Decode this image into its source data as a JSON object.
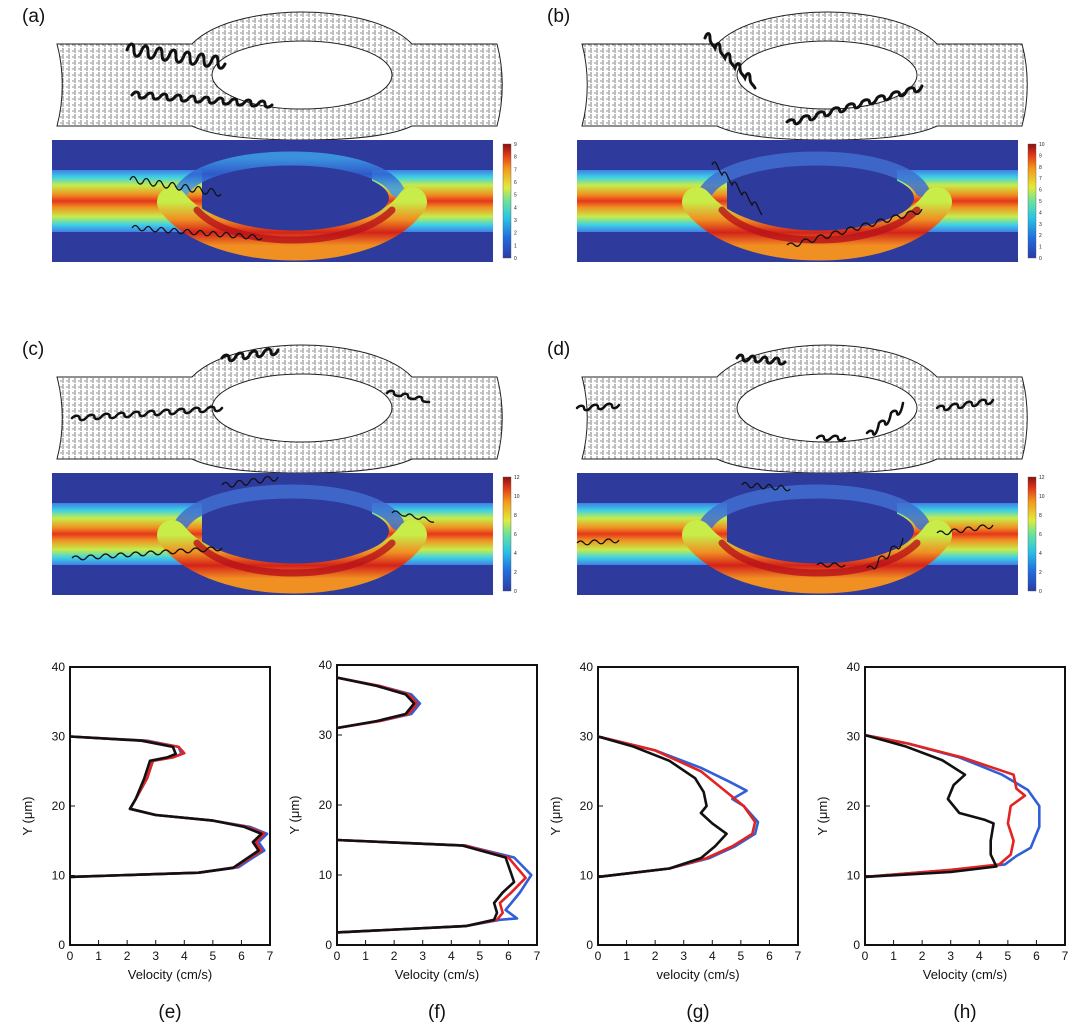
{
  "panels": {
    "a": {
      "label": "(a)",
      "colorbar_ticks": [
        "9",
        "8",
        "7",
        "6",
        "5",
        "4",
        "3",
        "2",
        "1",
        "0"
      ],
      "colorbar_max": 9
    },
    "b": {
      "label": "(b)",
      "colorbar_ticks": [
        "10",
        "9",
        "8",
        "7",
        "6",
        "5",
        "4",
        "3",
        "2",
        "1",
        "0"
      ],
      "colorbar_max": 10
    },
    "c": {
      "label": "(c)",
      "colorbar_ticks": [
        "12",
        "10",
        "8",
        "6",
        "4",
        "2",
        "0"
      ],
      "colorbar_max": 12
    },
    "d": {
      "label": "(d)",
      "colorbar_ticks": [
        "12",
        "10",
        "8",
        "6",
        "4",
        "2",
        "0"
      ],
      "colorbar_max": 12
    }
  },
  "colors": {
    "blue_series": "#2f5fd9",
    "red_series": "#e32222",
    "black_series": "#111111",
    "jet_low": "#2b3aa8",
    "jet_high": "#8b1010"
  },
  "chart_data": [
    {
      "type": "line",
      "panel_label": "(e)",
      "xlabel": "Velocity (cm/s)",
      "ylabel": "Y (μm)",
      "xlim": [
        0,
        7
      ],
      "ylim": [
        0,
        40
      ],
      "xticks": [
        "0",
        "1",
        "2",
        "3",
        "4",
        "5",
        "6",
        "7"
      ],
      "yticks": [
        "0",
        "10",
        "20",
        "30",
        "40"
      ],
      "series": [
        {
          "color": "blue",
          "points": [
            [
              0,
              9.8
            ],
            [
              4.5,
              10.4
            ],
            [
              5.9,
              11.2
            ],
            [
              6.3,
              12.3
            ],
            [
              6.8,
              13.6
            ],
            [
              6.6,
              14.8
            ],
            [
              6.9,
              16
            ],
            [
              6.3,
              17
            ],
            [
              5,
              17.9
            ],
            [
              3,
              18.7
            ],
            [
              2.1,
              19.6
            ],
            [
              2.3,
              21
            ],
            [
              2.7,
              24
            ],
            [
              2.9,
              26.5
            ],
            [
              3.6,
              27
            ],
            [
              3.9,
              27.5
            ],
            [
              3.8,
              28.5
            ],
            [
              2.7,
              29.4
            ],
            [
              0,
              30
            ]
          ]
        },
        {
          "color": "red",
          "points": [
            [
              0,
              9.8
            ],
            [
              4.5,
              10.4
            ],
            [
              5.8,
              11.2
            ],
            [
              6.2,
              12.3
            ],
            [
              6.7,
              13.6
            ],
            [
              6.5,
              14.8
            ],
            [
              6.8,
              16
            ],
            [
              6.2,
              17
            ],
            [
              5,
              17.9
            ],
            [
              3,
              18.7
            ],
            [
              2.1,
              19.6
            ],
            [
              2.3,
              21
            ],
            [
              2.7,
              24
            ],
            [
              2.9,
              26.5
            ],
            [
              3.6,
              27
            ],
            [
              4,
              27.6
            ],
            [
              3.8,
              28.5
            ],
            [
              2.6,
              29.4
            ],
            [
              0,
              30
            ]
          ]
        },
        {
          "color": "black",
          "points": [
            [
              0,
              9.8
            ],
            [
              4.5,
              10.4
            ],
            [
              5.7,
              11.1
            ],
            [
              6.1,
              12.2
            ],
            [
              6.6,
              13.6
            ],
            [
              6.4,
              14.8
            ],
            [
              6.7,
              16
            ],
            [
              6.1,
              17
            ],
            [
              5,
              17.9
            ],
            [
              3,
              18.7
            ],
            [
              2.1,
              19.6
            ],
            [
              2.3,
              21
            ],
            [
              2.6,
              24
            ],
            [
              2.8,
              26.5
            ],
            [
              3.4,
              27
            ],
            [
              3.7,
              27.5
            ],
            [
              3.6,
              28.5
            ],
            [
              2.5,
              29.4
            ],
            [
              0,
              30
            ]
          ]
        }
      ]
    },
    {
      "type": "line",
      "panel_label": "(f)",
      "xlabel": "Velocity (cm/s)",
      "ylabel": "Y (μm)",
      "xlim": [
        0,
        7
      ],
      "ylim": [
        0,
        40
      ],
      "xticks": [
        "0",
        "1",
        "2",
        "3",
        "4",
        "5",
        "6",
        "7"
      ],
      "yticks": [
        "0",
        "10",
        "20",
        "30",
        "40"
      ],
      "series": [
        {
          "color": "blue",
          "points": [
            [
              0,
              1.8
            ],
            [
              4.5,
              2.7
            ],
            [
              5.7,
              3.6
            ],
            [
              6,
              3.7
            ],
            [
              6.3,
              3.8
            ],
            [
              5.9,
              5
            ],
            [
              6.4,
              7.5
            ],
            [
              6.8,
              10
            ],
            [
              6.2,
              12.5
            ],
            [
              4.5,
              14.2
            ],
            [
              0,
              15
            ]
          ],
          "points2": [
            [
              0,
              31
            ],
            [
              1.5,
              32
            ],
            [
              2.6,
              33
            ],
            [
              2.9,
              34.5
            ],
            [
              2.6,
              35.8
            ],
            [
              1.5,
              37
            ],
            [
              0,
              38.2
            ]
          ]
        },
        {
          "color": "red",
          "points": [
            [
              0,
              1.8
            ],
            [
              4.5,
              2.7
            ],
            [
              5.6,
              3.6
            ],
            [
              5.8,
              4.6
            ],
            [
              5.7,
              6
            ],
            [
              6.1,
              7.5
            ],
            [
              6.6,
              9.6
            ],
            [
              6,
              12.5
            ],
            [
              4.5,
              14.2
            ],
            [
              0,
              15
            ]
          ],
          "points2": [
            [
              0,
              31
            ],
            [
              1.5,
              32
            ],
            [
              2.5,
              33
            ],
            [
              2.8,
              34.5
            ],
            [
              2.5,
              35.8
            ],
            [
              1.5,
              37
            ],
            [
              0,
              38.2
            ]
          ]
        },
        {
          "color": "black",
          "points": [
            [
              0,
              1.8
            ],
            [
              4.5,
              2.7
            ],
            [
              5.5,
              3.6
            ],
            [
              5.6,
              4.6
            ],
            [
              5.5,
              6
            ],
            [
              5.8,
              7.5
            ],
            [
              6.2,
              9
            ],
            [
              5.9,
              12.5
            ],
            [
              4.4,
              14.2
            ],
            [
              0,
              15
            ]
          ],
          "points2": [
            [
              0,
              31
            ],
            [
              1.4,
              32
            ],
            [
              2.4,
              33
            ],
            [
              2.7,
              34.5
            ],
            [
              2.4,
              35.8
            ],
            [
              1.4,
              37
            ],
            [
              0,
              38.2
            ]
          ]
        }
      ]
    },
    {
      "type": "line",
      "panel_label": "(g)",
      "xlabel": "velocity (cm/s)",
      "ylabel": "Y (μm)",
      "xlim": [
        0,
        7
      ],
      "ylim": [
        0,
        40
      ],
      "xticks": [
        "0",
        "1",
        "2",
        "3",
        "4",
        "5",
        "6",
        "7"
      ],
      "yticks": [
        "0",
        "10",
        "20",
        "30",
        "40"
      ],
      "series": [
        {
          "color": "blue",
          "points": [
            [
              0,
              9.8
            ],
            [
              2.5,
              11
            ],
            [
              3.9,
              12.5
            ],
            [
              4.8,
              14.2
            ],
            [
              5.5,
              16
            ],
            [
              5.6,
              17.7
            ],
            [
              5.1,
              20
            ],
            [
              4.7,
              21
            ],
            [
              5.2,
              22.2
            ],
            [
              4.6,
              23.5
            ],
            [
              3.6,
              25.5
            ],
            [
              2,
              28
            ],
            [
              0,
              30
            ]
          ]
        },
        {
          "color": "red",
          "points": [
            [
              0,
              9.8
            ],
            [
              2.5,
              11
            ],
            [
              3.8,
              12.5
            ],
            [
              4.7,
              14.2
            ],
            [
              5.4,
              16
            ],
            [
              5.5,
              17.7
            ],
            [
              5.1,
              20
            ],
            [
              4.5,
              22
            ],
            [
              3.6,
              25
            ],
            [
              2,
              28
            ],
            [
              0,
              30
            ]
          ]
        },
        {
          "color": "black",
          "points": [
            [
              0,
              9.8
            ],
            [
              2.5,
              11
            ],
            [
              3.6,
              12.5
            ],
            [
              4.1,
              14.2
            ],
            [
              4.5,
              16
            ],
            [
              4,
              17.5
            ],
            [
              3.6,
              19
            ],
            [
              3.8,
              20
            ],
            [
              3.7,
              22
            ],
            [
              3.4,
              24
            ],
            [
              2.5,
              26.5
            ],
            [
              1.2,
              28.6
            ],
            [
              0,
              30
            ]
          ]
        }
      ]
    },
    {
      "type": "line",
      "panel_label": "(h)",
      "xlabel": "Velocity (cm/s)",
      "ylabel": "Y (μm)",
      "xlim": [
        0,
        7
      ],
      "ylim": [
        0,
        40
      ],
      "xticks": [
        "0",
        "1",
        "2",
        "3",
        "4",
        "5",
        "6",
        "7"
      ],
      "yticks": [
        "0",
        "10",
        "20",
        "30",
        "40"
      ],
      "series": [
        {
          "color": "blue",
          "points": [
            [
              0,
              9.8
            ],
            [
              3,
              10.8
            ],
            [
              4.9,
              11.6
            ],
            [
              5.3,
              12.8
            ],
            [
              5.8,
              14
            ],
            [
              6.1,
              17
            ],
            [
              6.1,
              20
            ],
            [
              5.7,
              22.3
            ],
            [
              4.8,
              24.5
            ],
            [
              3.3,
              27
            ],
            [
              1.5,
              29
            ],
            [
              0,
              30.2
            ]
          ]
        },
        {
          "color": "red",
          "points": [
            [
              0,
              9.8
            ],
            [
              3,
              10.8
            ],
            [
              4.7,
              11.6
            ],
            [
              5.1,
              13
            ],
            [
              5.2,
              15
            ],
            [
              5,
              17.5
            ],
            [
              5.1,
              20
            ],
            [
              5.6,
              21.5
            ],
            [
              5.3,
              22.5
            ],
            [
              5.2,
              24.5
            ],
            [
              3.4,
              27
            ],
            [
              1.5,
              29
            ],
            [
              0,
              30.2
            ]
          ]
        },
        {
          "color": "black",
          "points": [
            [
              0,
              9.8
            ],
            [
              3,
              10.5
            ],
            [
              4.6,
              11.3
            ],
            [
              4.4,
              13
            ],
            [
              4.4,
              15
            ],
            [
              4.5,
              17.5
            ],
            [
              4.2,
              18
            ],
            [
              3.3,
              19
            ],
            [
              2.9,
              21
            ],
            [
              3.1,
              23
            ],
            [
              3.5,
              24.5
            ],
            [
              2.7,
              26.6
            ],
            [
              1.4,
              28.6
            ],
            [
              0,
              30.2
            ]
          ]
        }
      ]
    }
  ]
}
